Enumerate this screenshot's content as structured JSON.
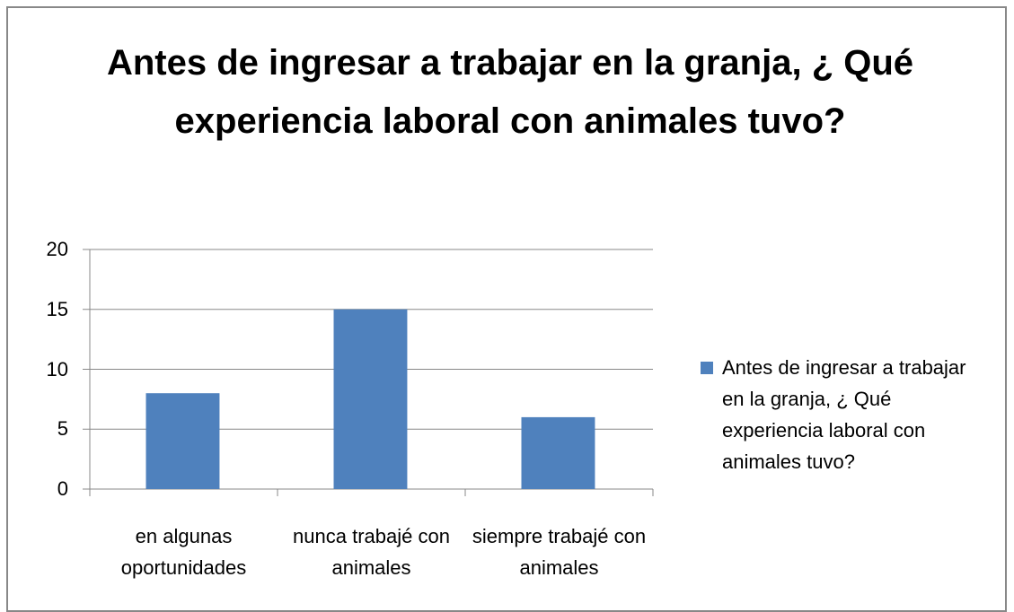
{
  "chart_data": {
    "type": "bar",
    "title": "Antes de ingresar a trabajar en la granja, ¿ Qué experiencia laboral con animales tuvo?",
    "categories": [
      "en algunas oportunidades",
      "nunca trabajé con animales",
      "siempre trabajé con animales"
    ],
    "series": [
      {
        "name": "Antes de ingresar a trabajar en la granja, ¿ Qué experiencia laboral con animales tuvo?",
        "color": "#4f81bd",
        "values": [
          8,
          15,
          6
        ]
      }
    ],
    "ylim": [
      0,
      20
    ],
    "yticks": [
      0,
      5,
      10,
      15,
      20
    ],
    "grid": true,
    "legend": "right"
  }
}
